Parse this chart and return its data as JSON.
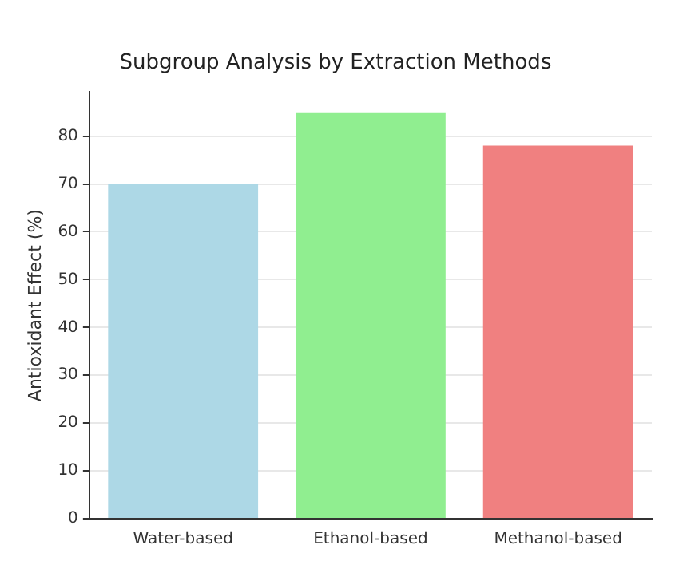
{
  "chart_data": {
    "type": "bar",
    "title": "Subgroup Analysis by Extraction Methods",
    "ylabel": "Antioxidant Effect (%)",
    "categories": [
      "Water-based",
      "Ethanol-based",
      "Methanol-based"
    ],
    "values": [
      70,
      85,
      78
    ],
    "colors": [
      "#add8e6",
      "#90ee90",
      "#f08080"
    ],
    "ylim": [
      0,
      89.25
    ],
    "yticks": [
      0,
      10,
      20,
      30,
      40,
      50,
      60,
      70,
      80
    ],
    "grid": "y"
  }
}
